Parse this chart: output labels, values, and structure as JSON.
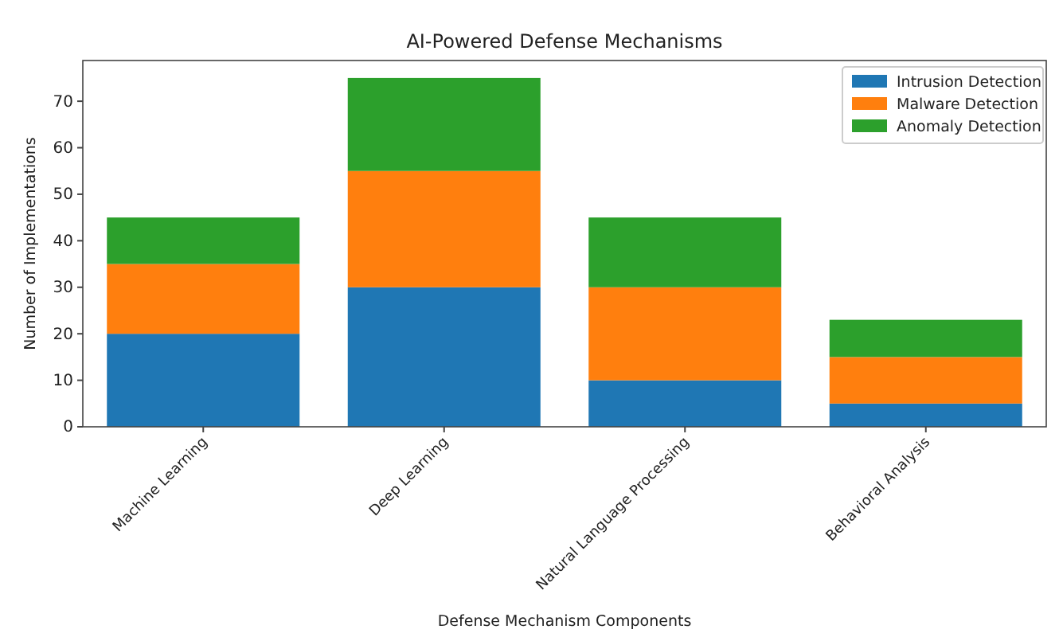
{
  "chart_data": {
    "type": "bar",
    "title": "AI-Powered Defense Mechanisms",
    "xlabel": "Defense Mechanism Components",
    "ylabel": "Number of Implementations",
    "categories": [
      "Machine Learning",
      "Deep Learning",
      "Natural Language Processing",
      "Behavioral Analysis"
    ],
    "stacked": true,
    "series": [
      {
        "name": "Intrusion Detection",
        "color": "#1f77b4",
        "values": [
          20,
          30,
          10,
          5
        ]
      },
      {
        "name": "Malware Detection",
        "color": "#ff7f0e",
        "values": [
          15,
          25,
          20,
          10
        ]
      },
      {
        "name": "Anomaly Detection",
        "color": "#2ca02c",
        "values": [
          10,
          20,
          15,
          8
        ]
      }
    ],
    "ylim": [
      0,
      78.75
    ],
    "yticks": [
      0,
      10,
      20,
      30,
      40,
      50,
      60,
      70
    ],
    "grid": false,
    "legend": "top right"
  }
}
